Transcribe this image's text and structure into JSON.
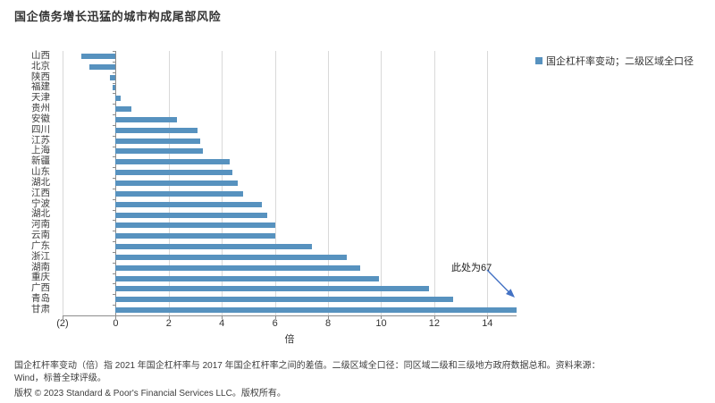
{
  "colors": {
    "bar": "#5792bf",
    "arrow": "#4472c4",
    "grid": "#d9d9d9",
    "axis": "#8c8c8c"
  },
  "footnote": {
    "line1": "国企杠杆率变动（倍）指 2021 年国企杠杆率与 2017 年国企杠杆率之间的差值。二级区域全口径：同区域二级和三级地方政府数据总和。资料来源：",
    "line2": "Wind，标普全球评级。",
    "copyright": "版权 © 2023 Standard & Poor's Financial Services LLC。版权所有。"
  },
  "chart_data": {
    "type": "bar",
    "orientation": "horizontal",
    "title": "国企债务增长迅猛的城市构成尾部风险",
    "xlabel": "倍",
    "legend_entries": [
      "国企杠杆率变动；二级区域全口径"
    ],
    "legend_position": "top-right",
    "grid": true,
    "xlim": [
      -2,
      15.1
    ],
    "xticks": {
      "labels": [
        "(2)",
        "0",
        "2",
        "4",
        "6",
        "8",
        "10",
        "12",
        "14"
      ],
      "values": [
        -2,
        0,
        2,
        4,
        6,
        8,
        10,
        12,
        14
      ]
    },
    "categories": [
      "山西",
      "北京",
      "陕西",
      "福建",
      "天津",
      "贵州",
      "安徽",
      "四川",
      "江苏",
      "上海",
      "新疆",
      "山东",
      "湖北",
      "江西",
      "宁波",
      "湖北",
      "河南",
      "云南",
      "广东",
      "浙江",
      "湖南",
      "重庆",
      "广西",
      "青岛",
      "甘肃"
    ],
    "values": [
      -1.3,
      -1.0,
      -0.2,
      -0.1,
      0.2,
      0.6,
      2.3,
      3.1,
      3.2,
      3.3,
      4.3,
      4.4,
      4.6,
      4.8,
      5.5,
      5.7,
      6.0,
      6.0,
      7.4,
      8.7,
      9.2,
      9.9,
      11.8,
      12.7,
      15.1
    ],
    "annotation": {
      "text": "此处为67",
      "target_category": "甘肃",
      "actual_value": 67
    }
  }
}
